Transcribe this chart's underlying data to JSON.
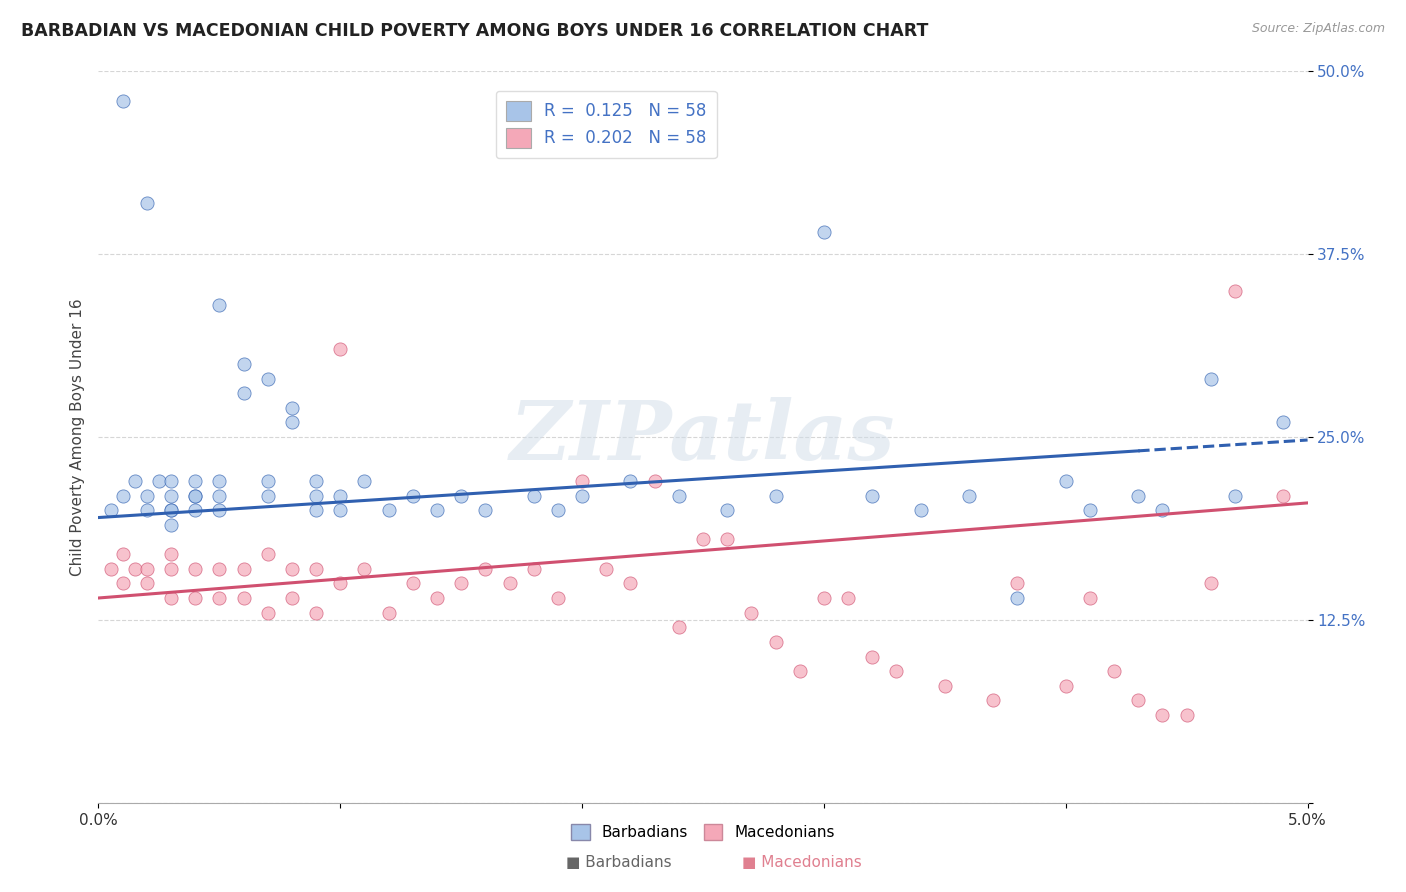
{
  "title": "BARBADIAN VS MACEDONIAN CHILD POVERTY AMONG BOYS UNDER 16 CORRELATION CHART",
  "source": "Source: ZipAtlas.com",
  "ylabel": "Child Poverty Among Boys Under 16",
  "xlabel_barbadians": "Barbadians",
  "xlabel_macedonians": "Macedonians",
  "r_barbadian": 0.125,
  "r_macedonian": 0.202,
  "n_barbadian": 58,
  "n_macedonian": 58,
  "x_min": 0.0,
  "x_max": 0.05,
  "y_min": 0.0,
  "y_max": 0.5,
  "color_barbadian": "#a8c4e8",
  "color_macedonian": "#f4a8b8",
  "line_color_barbadian": "#3060b0",
  "line_color_macedonian": "#d05070",
  "watermark_color": "#d0dce8",
  "background_color": "#ffffff",
  "grid_color": "#cccccc",
  "scatter_alpha": 0.7,
  "scatter_size": 90,
  "barbadian_x": [
    0.0005,
    0.001,
    0.001,
    0.0015,
    0.002,
    0.002,
    0.002,
    0.0025,
    0.003,
    0.003,
    0.003,
    0.003,
    0.003,
    0.004,
    0.004,
    0.004,
    0.004,
    0.005,
    0.005,
    0.005,
    0.005,
    0.006,
    0.006,
    0.007,
    0.007,
    0.007,
    0.008,
    0.008,
    0.009,
    0.009,
    0.009,
    0.01,
    0.01,
    0.011,
    0.012,
    0.013,
    0.014,
    0.015,
    0.016,
    0.018,
    0.019,
    0.02,
    0.022,
    0.024,
    0.026,
    0.028,
    0.03,
    0.032,
    0.034,
    0.036,
    0.038,
    0.04,
    0.041,
    0.043,
    0.044,
    0.046,
    0.047,
    0.049
  ],
  "barbadian_y": [
    0.2,
    0.48,
    0.21,
    0.22,
    0.41,
    0.21,
    0.2,
    0.22,
    0.22,
    0.21,
    0.2,
    0.2,
    0.19,
    0.22,
    0.21,
    0.21,
    0.2,
    0.34,
    0.22,
    0.21,
    0.2,
    0.3,
    0.28,
    0.29,
    0.22,
    0.21,
    0.27,
    0.26,
    0.22,
    0.21,
    0.2,
    0.21,
    0.2,
    0.22,
    0.2,
    0.21,
    0.2,
    0.21,
    0.2,
    0.21,
    0.2,
    0.21,
    0.22,
    0.21,
    0.2,
    0.21,
    0.39,
    0.21,
    0.2,
    0.21,
    0.14,
    0.22,
    0.2,
    0.21,
    0.2,
    0.29,
    0.21,
    0.26
  ],
  "macedonian_x": [
    0.0005,
    0.001,
    0.001,
    0.0015,
    0.002,
    0.002,
    0.003,
    0.003,
    0.003,
    0.004,
    0.004,
    0.005,
    0.005,
    0.006,
    0.006,
    0.007,
    0.007,
    0.008,
    0.008,
    0.009,
    0.009,
    0.01,
    0.01,
    0.011,
    0.012,
    0.013,
    0.014,
    0.015,
    0.016,
    0.017,
    0.018,
    0.019,
    0.02,
    0.021,
    0.022,
    0.023,
    0.024,
    0.025,
    0.026,
    0.027,
    0.028,
    0.029,
    0.03,
    0.031,
    0.032,
    0.033,
    0.035,
    0.037,
    0.038,
    0.04,
    0.041,
    0.042,
    0.043,
    0.044,
    0.045,
    0.046,
    0.047,
    0.049
  ],
  "macedonian_y": [
    0.16,
    0.17,
    0.15,
    0.16,
    0.16,
    0.15,
    0.17,
    0.16,
    0.14,
    0.16,
    0.14,
    0.16,
    0.14,
    0.16,
    0.14,
    0.17,
    0.13,
    0.16,
    0.14,
    0.16,
    0.13,
    0.31,
    0.15,
    0.16,
    0.13,
    0.15,
    0.14,
    0.15,
    0.16,
    0.15,
    0.16,
    0.14,
    0.22,
    0.16,
    0.15,
    0.22,
    0.12,
    0.18,
    0.18,
    0.13,
    0.11,
    0.09,
    0.14,
    0.14,
    0.1,
    0.09,
    0.08,
    0.07,
    0.15,
    0.08,
    0.14,
    0.09,
    0.07,
    0.06,
    0.06,
    0.15,
    0.35,
    0.21
  ]
}
